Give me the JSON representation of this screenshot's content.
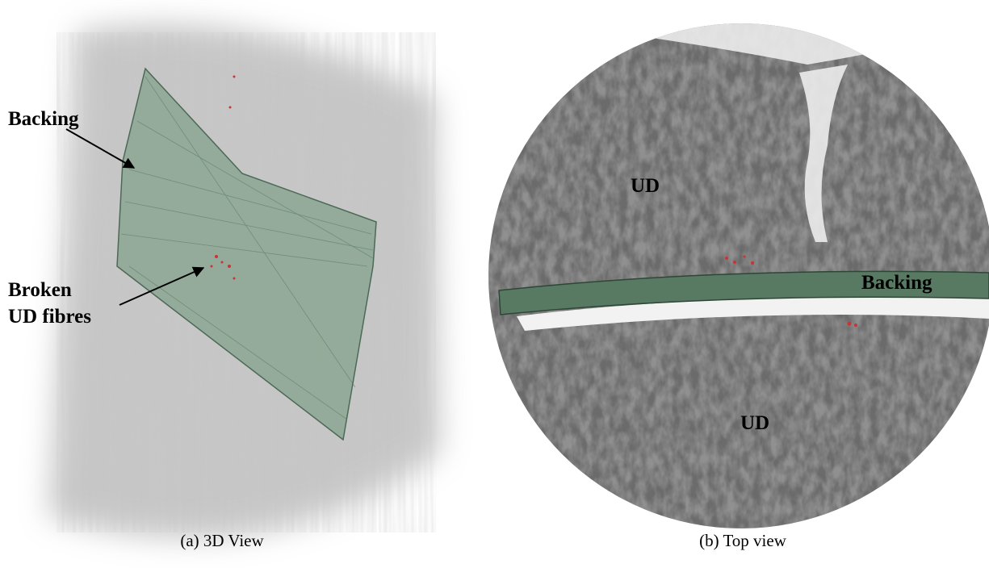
{
  "panels": [
    {
      "caption": "(a) 3D View",
      "labels": [
        "Backing",
        "Broken",
        "UD fibres"
      ]
    },
    {
      "caption": "(b) Top view",
      "labels": [
        "UD",
        "Backing",
        "UD"
      ]
    }
  ]
}
